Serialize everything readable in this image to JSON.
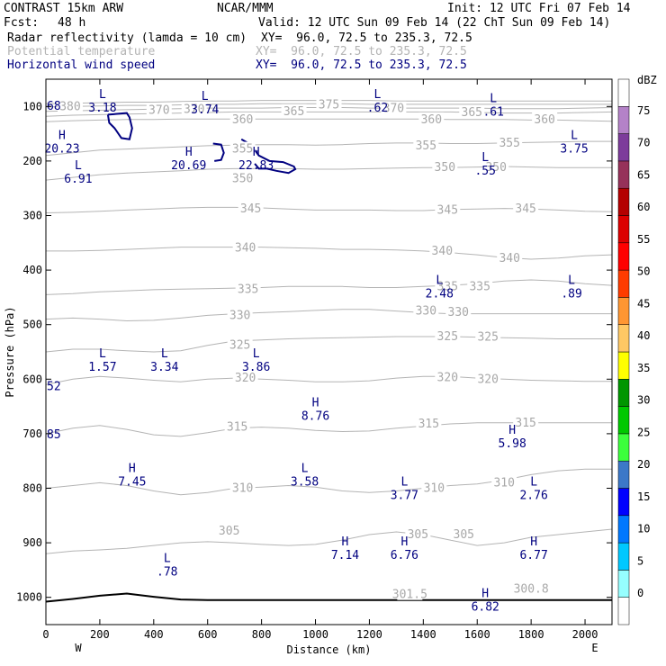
{
  "header": {
    "model": "CONTRAST 15km ARW",
    "center": "NCAR/MMM",
    "init": "Init: 12 UTC Fri 07 Feb 14",
    "fcst_label": "Fcst:",
    "fcst_value": "48 h",
    "valid": "Valid: 12 UTC Sun 09 Feb 14 (22 ChT Sun 09 Feb 14)",
    "fields": [
      {
        "name": "Radar reflectivity (lamda = 10 cm)",
        "xy": "XY=  96.0, 72.5 to 235.3, 72.5",
        "color": "#000000"
      },
      {
        "name": "Potential temperature",
        "xy": "XY=  96.0, 72.5 to 235.3, 72.5",
        "color": "#b4b4b4"
      },
      {
        "name": "Horizontal wind speed",
        "xy": "XY=  96.0, 72.5 to 235.3, 72.5",
        "color": "#000080"
      }
    ]
  },
  "chart_data": {
    "type": "cross-section",
    "xlabel": "Distance (km)",
    "ylabel": "Pressure (hPa)",
    "xlim": [
      0,
      2100
    ],
    "ylim": [
      1050,
      50
    ],
    "x_ticks": [
      0,
      200,
      400,
      600,
      800,
      1000,
      1200,
      1400,
      1600,
      1800,
      2000
    ],
    "y_ticks": [
      100,
      200,
      300,
      400,
      500,
      600,
      700,
      800,
      900,
      1000
    ],
    "x_ends": [
      "W",
      "E"
    ],
    "colorbar": {
      "unit": "dBZ",
      "levels": [
        0,
        5,
        10,
        15,
        20,
        25,
        30,
        35,
        40,
        45,
        50,
        55,
        60,
        65,
        70,
        75
      ],
      "colors": [
        "#ffffff",
        "#96ffff",
        "#00c8ff",
        "#0078ff",
        "#0000ff",
        "#3c78c8",
        "#3cff3c",
        "#00c800",
        "#009600",
        "#ffff00",
        "#ffc864",
        "#ff9632",
        "#ff3c00",
        "#ff0000",
        "#dc0000",
        "#b40000",
        "#96325a",
        "#7d3c9b",
        "#b482c8",
        "#ffffff"
      ]
    },
    "theta_levels": [
      {
        "value": 305,
        "p": [
          920,
          915,
          913,
          910,
          905,
          900,
          898,
          900,
          903,
          905,
          903,
          895,
          885,
          880,
          885,
          895,
          905,
          900,
          890,
          885,
          880,
          875
        ]
      },
      {
        "value": 310,
        "p": [
          800,
          795,
          790,
          795,
          805,
          812,
          808,
          800,
          798,
          795,
          798,
          805,
          808,
          805,
          800,
          795,
          792,
          785,
          775,
          768,
          765,
          765
        ]
      },
      {
        "value": 315,
        "p": [
          700,
          690,
          685,
          692,
          702,
          705,
          698,
          690,
          688,
          690,
          694,
          696,
          695,
          690,
          686,
          682,
          680,
          680,
          680,
          680,
          680,
          680
        ]
      },
      {
        "value": 320,
        "p": [
          610,
          600,
          595,
          598,
          602,
          605,
          600,
          598,
          600,
          602,
          605,
          605,
          603,
          598,
          595,
          595,
          598,
          600,
          602,
          603,
          604,
          604
        ]
      },
      {
        "value": 325,
        "p": [
          550,
          545,
          545,
          548,
          550,
          548,
          538,
          530,
          528,
          526,
          525,
          524,
          523,
          522,
          522,
          522,
          523,
          524,
          525,
          526,
          526,
          526
        ]
      },
      {
        "value": 330,
        "p": [
          490,
          488,
          490,
          493,
          492,
          488,
          483,
          480,
          478,
          476,
          474,
          472,
          472,
          475,
          478,
          480,
          480,
          480,
          480,
          480,
          480,
          480
        ]
      },
      {
        "value": 335,
        "p": [
          445,
          443,
          440,
          438,
          436,
          435,
          434,
          433,
          432,
          430,
          430,
          430,
          432,
          432,
          430,
          428,
          425,
          420,
          418,
          420,
          425,
          428
        ]
      },
      {
        "value": 340,
        "p": [
          365,
          365,
          364,
          362,
          360,
          358,
          358,
          358,
          358,
          359,
          360,
          362,
          362,
          363,
          365,
          368,
          372,
          377,
          380,
          378,
          374,
          372
        ]
      },
      {
        "value": 345,
        "p": [
          295,
          294,
          292,
          290,
          288,
          286,
          285,
          285,
          286,
          288,
          290,
          290,
          290,
          291,
          291,
          289,
          288,
          287,
          288,
          290,
          292,
          293
        ]
      },
      {
        "value": 350,
        "p": [
          235,
          230,
          225,
          222,
          220,
          218,
          215,
          214,
          214,
          214,
          215,
          215,
          214,
          213,
          212,
          212,
          211,
          210,
          211,
          212,
          212,
          212
        ]
      },
      {
        "value": 355,
        "p": [
          190,
          185,
          180,
          178,
          176,
          174,
          172,
          171,
          170,
          170,
          171,
          170,
          168,
          167,
          167,
          168,
          168,
          167,
          166,
          165,
          164,
          164
        ]
      },
      {
        "value": 360,
        "p": [
          128,
          126,
          125,
          124,
          124,
          123,
          123,
          123,
          123,
          123,
          123,
          123,
          123,
          123,
          123,
          124,
          124,
          124,
          125,
          125,
          126,
          127
        ]
      },
      {
        "value": 365,
        "p": [
          118,
          116,
          115,
          114,
          113,
          112,
          111,
          110,
          110,
          110,
          110,
          110,
          110,
          110,
          110,
          110,
          111,
          112,
          112,
          112,
          111,
          110
        ]
      },
      {
        "value": 370,
        "p": [
          109,
          108,
          107,
          106,
          105,
          104,
          103,
          103,
          103,
          102,
          102,
          102,
          103,
          103,
          103,
          103,
          103,
          104,
          104,
          104,
          103,
          102
        ]
      },
      {
        "value": 375,
        "p": [
          101,
          100,
          99,
          98,
          98,
          97,
          96,
          96,
          95,
          95,
          95,
          95,
          96,
          96,
          96,
          96,
          96,
          96,
          96,
          96,
          96,
          96
        ]
      },
      {
        "value": 380,
        "p": [
          95,
          94,
          93,
          92,
          92,
          91,
          90,
          90,
          89,
          89,
          89,
          89,
          89,
          90,
          90,
          90,
          90,
          90,
          90,
          90,
          90,
          90
        ]
      }
    ],
    "theta_labels": [
      {
        "text": "380",
        "x": 90,
        "p": 100
      },
      {
        "text": "370",
        "x": 420,
        "p": 107
      },
      {
        "text": "370",
        "x": 550,
        "p": 105
      },
      {
        "text": "365",
        "x": 920,
        "p": 109
      },
      {
        "text": "375",
        "x": 1050,
        "p": 97
      },
      {
        "text": "370",
        "x": 1290,
        "p": 104
      },
      {
        "text": "365",
        "x": 1580,
        "p": 111
      },
      {
        "text": "360",
        "x": 730,
        "p": 124
      },
      {
        "text": "360",
        "x": 1430,
        "p": 124
      },
      {
        "text": "360",
        "x": 1850,
        "p": 124
      },
      {
        "text": "355",
        "x": 730,
        "p": 178
      },
      {
        "text": "355",
        "x": 1410,
        "p": 172
      },
      {
        "text": "355",
        "x": 1720,
        "p": 167
      },
      {
        "text": "350",
        "x": 730,
        "p": 232
      },
      {
        "text": "350",
        "x": 1480,
        "p": 212
      },
      {
        "text": "350",
        "x": 1670,
        "p": 212
      },
      {
        "text": "345",
        "x": 760,
        "p": 288
      },
      {
        "text": "345",
        "x": 1490,
        "p": 290
      },
      {
        "text": "345",
        "x": 1780,
        "p": 288
      },
      {
        "text": "340",
        "x": 740,
        "p": 359
      },
      {
        "text": "340",
        "x": 1470,
        "p": 365
      },
      {
        "text": "340",
        "x": 1720,
        "p": 378
      },
      {
        "text": "335",
        "x": 750,
        "p": 435
      },
      {
        "text": "335",
        "x": 1490,
        "p": 430
      },
      {
        "text": "335",
        "x": 1610,
        "p": 430
      },
      {
        "text": "330",
        "x": 720,
        "p": 483
      },
      {
        "text": "330",
        "x": 1410,
        "p": 475
      },
      {
        "text": "330",
        "x": 1530,
        "p": 477
      },
      {
        "text": "325",
        "x": 720,
        "p": 538
      },
      {
        "text": "325",
        "x": 1490,
        "p": 522
      },
      {
        "text": "325",
        "x": 1640,
        "p": 523
      },
      {
        "text": "320",
        "x": 740,
        "p": 598
      },
      {
        "text": "320",
        "x": 1490,
        "p": 597
      },
      {
        "text": "320",
        "x": 1640,
        "p": 600
      },
      {
        "text": "315",
        "x": 710,
        "p": 688
      },
      {
        "text": "315",
        "x": 1420,
        "p": 682
      },
      {
        "text": "315",
        "x": 1780,
        "p": 680
      },
      {
        "text": "310",
        "x": 730,
        "p": 800
      },
      {
        "text": "310",
        "x": 1440,
        "p": 800
      },
      {
        "text": "310",
        "x": 1700,
        "p": 790
      },
      {
        "text": "305",
        "x": 680,
        "p": 878
      },
      {
        "text": "305",
        "x": 1380,
        "p": 885
      },
      {
        "text": "305",
        "x": 1550,
        "p": 885
      },
      {
        "text": "301.5",
        "x": 1350,
        "p": 995
      },
      {
        "text": "300.8",
        "x": 1800,
        "p": 985
      }
    ],
    "extrema": [
      {
        "type": "L",
        "value": "3.18",
        "x": 210,
        "p": 85
      },
      {
        "type": "L",
        "value": "3.74",
        "x": 590,
        "p": 88
      },
      {
        "type": "L",
        "value": ".62",
        "x": 1230,
        "p": 85
      },
      {
        "type": "L",
        "value": ".61",
        "x": 1660,
        "p": 92
      },
      {
        "type": "H",
        "value": "20.23",
        "x": 60,
        "p": 160
      },
      {
        "type": "H",
        "value": "20.69",
        "x": 530,
        "p": 190
      },
      {
        "type": "H",
        "value": "22.83",
        "x": 780,
        "p": 190
      },
      {
        "type": "L",
        "value": "3.75",
        "x": 1960,
        "p": 160
      },
      {
        "type": "L",
        "value": "6.91",
        "x": 120,
        "p": 215
      },
      {
        "type": "L",
        "value": ".55",
        "x": 1630,
        "p": 200
      },
      {
        "type": "L",
        "value": "2.48",
        "x": 1460,
        "p": 425
      },
      {
        "type": "L",
        "value": ".89",
        "x": 1950,
        "p": 425
      },
      {
        "type": "L",
        "value": "1.57",
        "x": 210,
        "p": 560
      },
      {
        "type": "L",
        "value": "3.34",
        "x": 440,
        "p": 560
      },
      {
        "type": "L",
        "value": "3.86",
        "x": 780,
        "p": 560
      },
      {
        "type": "H",
        "value": "8.76",
        "x": 1000,
        "p": 650
      },
      {
        "type": "H",
        "value": "5.98",
        "x": 1730,
        "p": 700
      },
      {
        "type": "H",
        "value": "7.45",
        "x": 320,
        "p": 770
      },
      {
        "type": "L",
        "value": "3.58",
        "x": 960,
        "p": 770
      },
      {
        "type": "L",
        "value": "3.77",
        "x": 1330,
        "p": 795
      },
      {
        "type": "L",
        "value": "2.76",
        "x": 1810,
        "p": 795
      },
      {
        "type": "H",
        "value": "7.14",
        "x": 1110,
        "p": 905
      },
      {
        "type": "H",
        "value": "6.76",
        "x": 1330,
        "p": 905
      },
      {
        "type": "H",
        "value": "6.77",
        "x": 1810,
        "p": 905
      },
      {
        "type": "L",
        "value": ".78",
        "x": 450,
        "p": 935
      },
      {
        "type": "H",
        "value": "6.82",
        "x": 1630,
        "p": 1000
      }
    ],
    "edge_values": [
      {
        "value": "68",
        "p": 98
      },
      {
        "value": "52",
        "p": 612
      },
      {
        "value": "85",
        "p": 700
      }
    ],
    "wind_contours": [
      {
        "x": [
          230,
          300,
          310,
          320,
          310,
          280,
          255,
          235,
          230
        ],
        "p": [
          115,
          112,
          120,
          140,
          160,
          158,
          140,
          130,
          115
        ]
      },
      {
        "x": [
          620,
          650,
          660,
          650,
          625
        ],
        "p": [
          168,
          170,
          185,
          198,
          200
        ]
      },
      {
        "x": [
          725,
          760,
          790,
          830,
          880,
          920,
          925,
          900,
          855,
          820,
          790,
          775
        ],
        "p": [
          160,
          170,
          190,
          200,
          202,
          210,
          215,
          222,
          218,
          214,
          214,
          205
        ]
      }
    ],
    "terrain_p": [
      1008,
      1003,
      997,
      993,
      999,
      1004,
      1005,
      1005,
      1005,
      1005,
      1005,
      1005,
      1005,
      1005,
      1005,
      1005,
      1005,
      1005,
      1005,
      1005,
      1005,
      1005
    ]
  }
}
